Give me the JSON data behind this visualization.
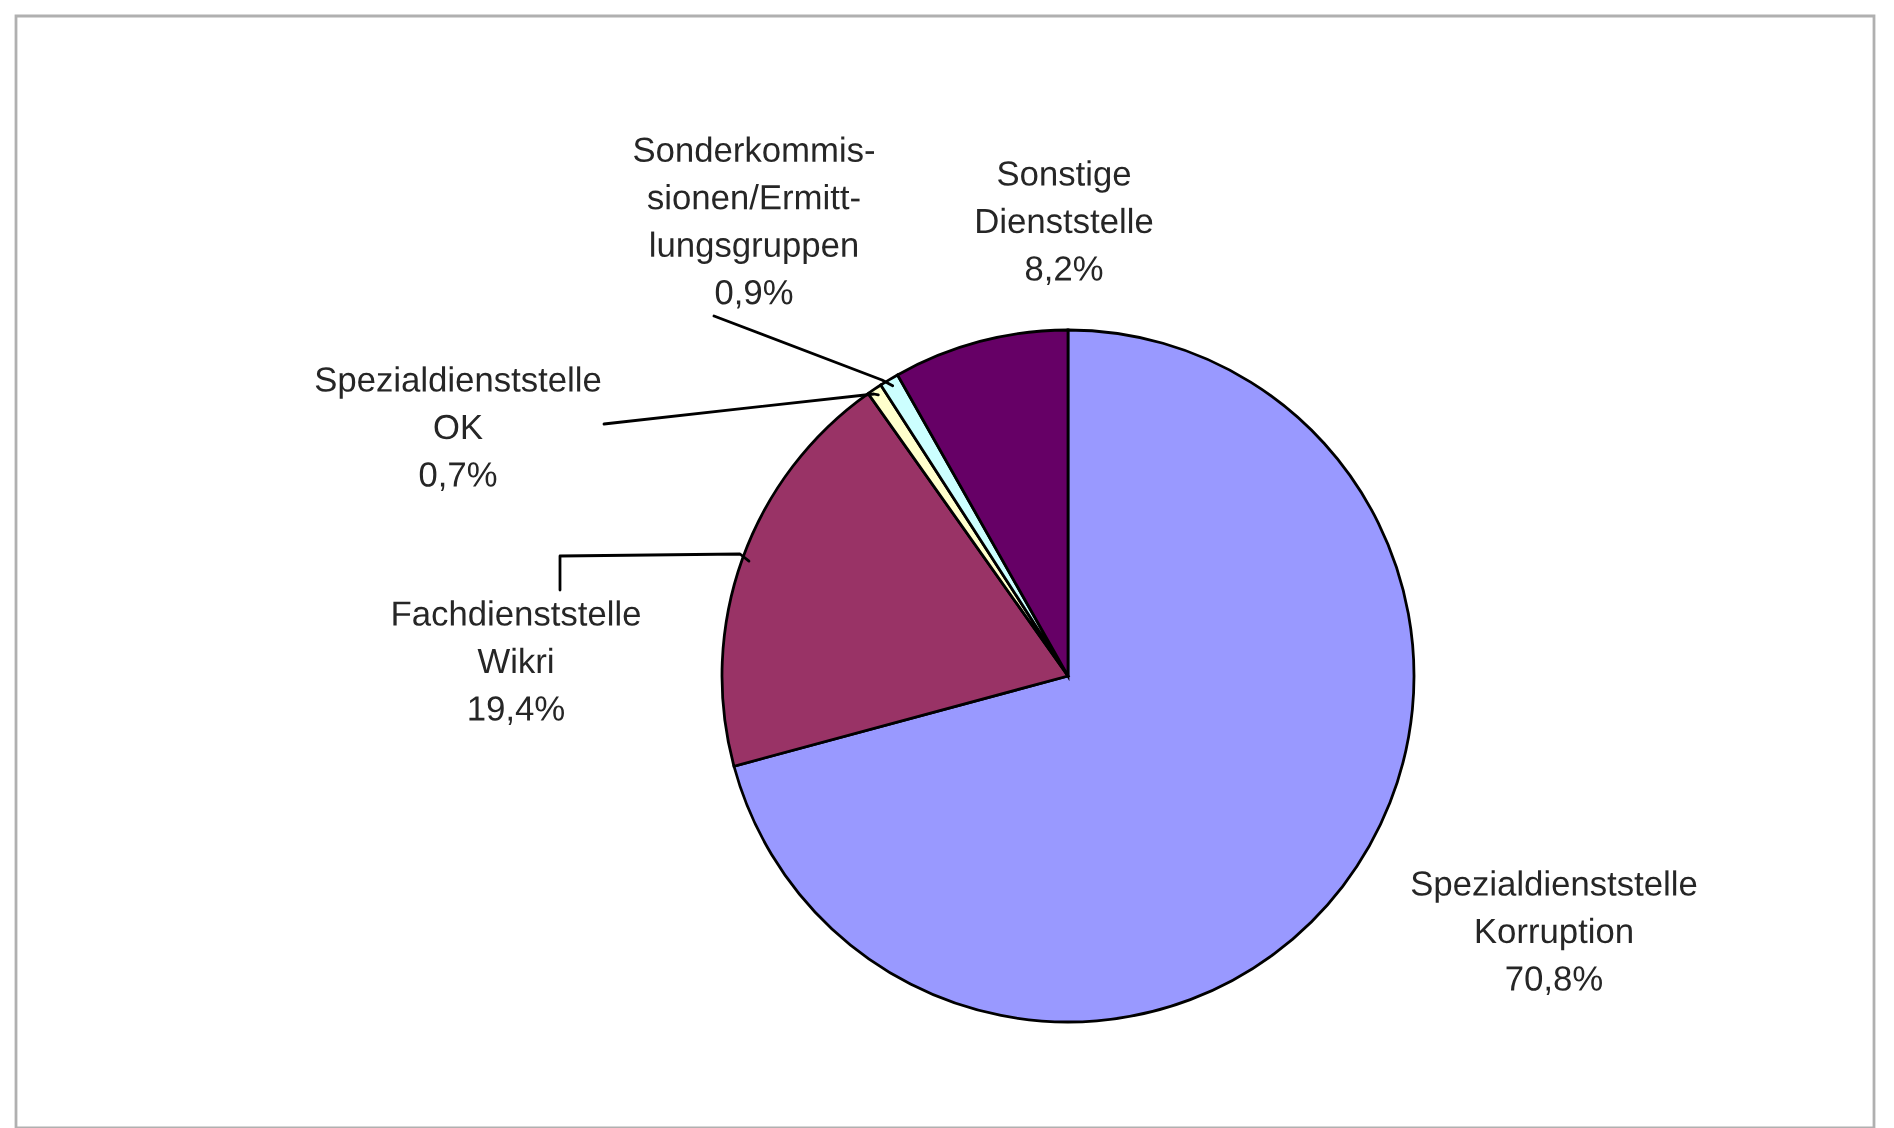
{
  "chart_data": {
    "type": "pie",
    "categories": [
      "Spezialdienststelle\nKorruption",
      "Fachdienststelle\nWikri",
      "Spezialdienststelle\nOK",
      "Sonderkommis-\nsionen/Ermitt-\nlungsgruppen",
      "Sonstige\nDienststelle"
    ],
    "values": [
      70.8,
      19.4,
      0.7,
      0.9,
      8.2
    ],
    "colors": [
      "#9999ff",
      "#993366",
      "#ffffcc",
      "#ccffff",
      "#660066"
    ],
    "value_labels": [
      "70,8%",
      "19,4%",
      "0,7%",
      "0,9%",
      "8,2%"
    ],
    "legend": false
  }
}
